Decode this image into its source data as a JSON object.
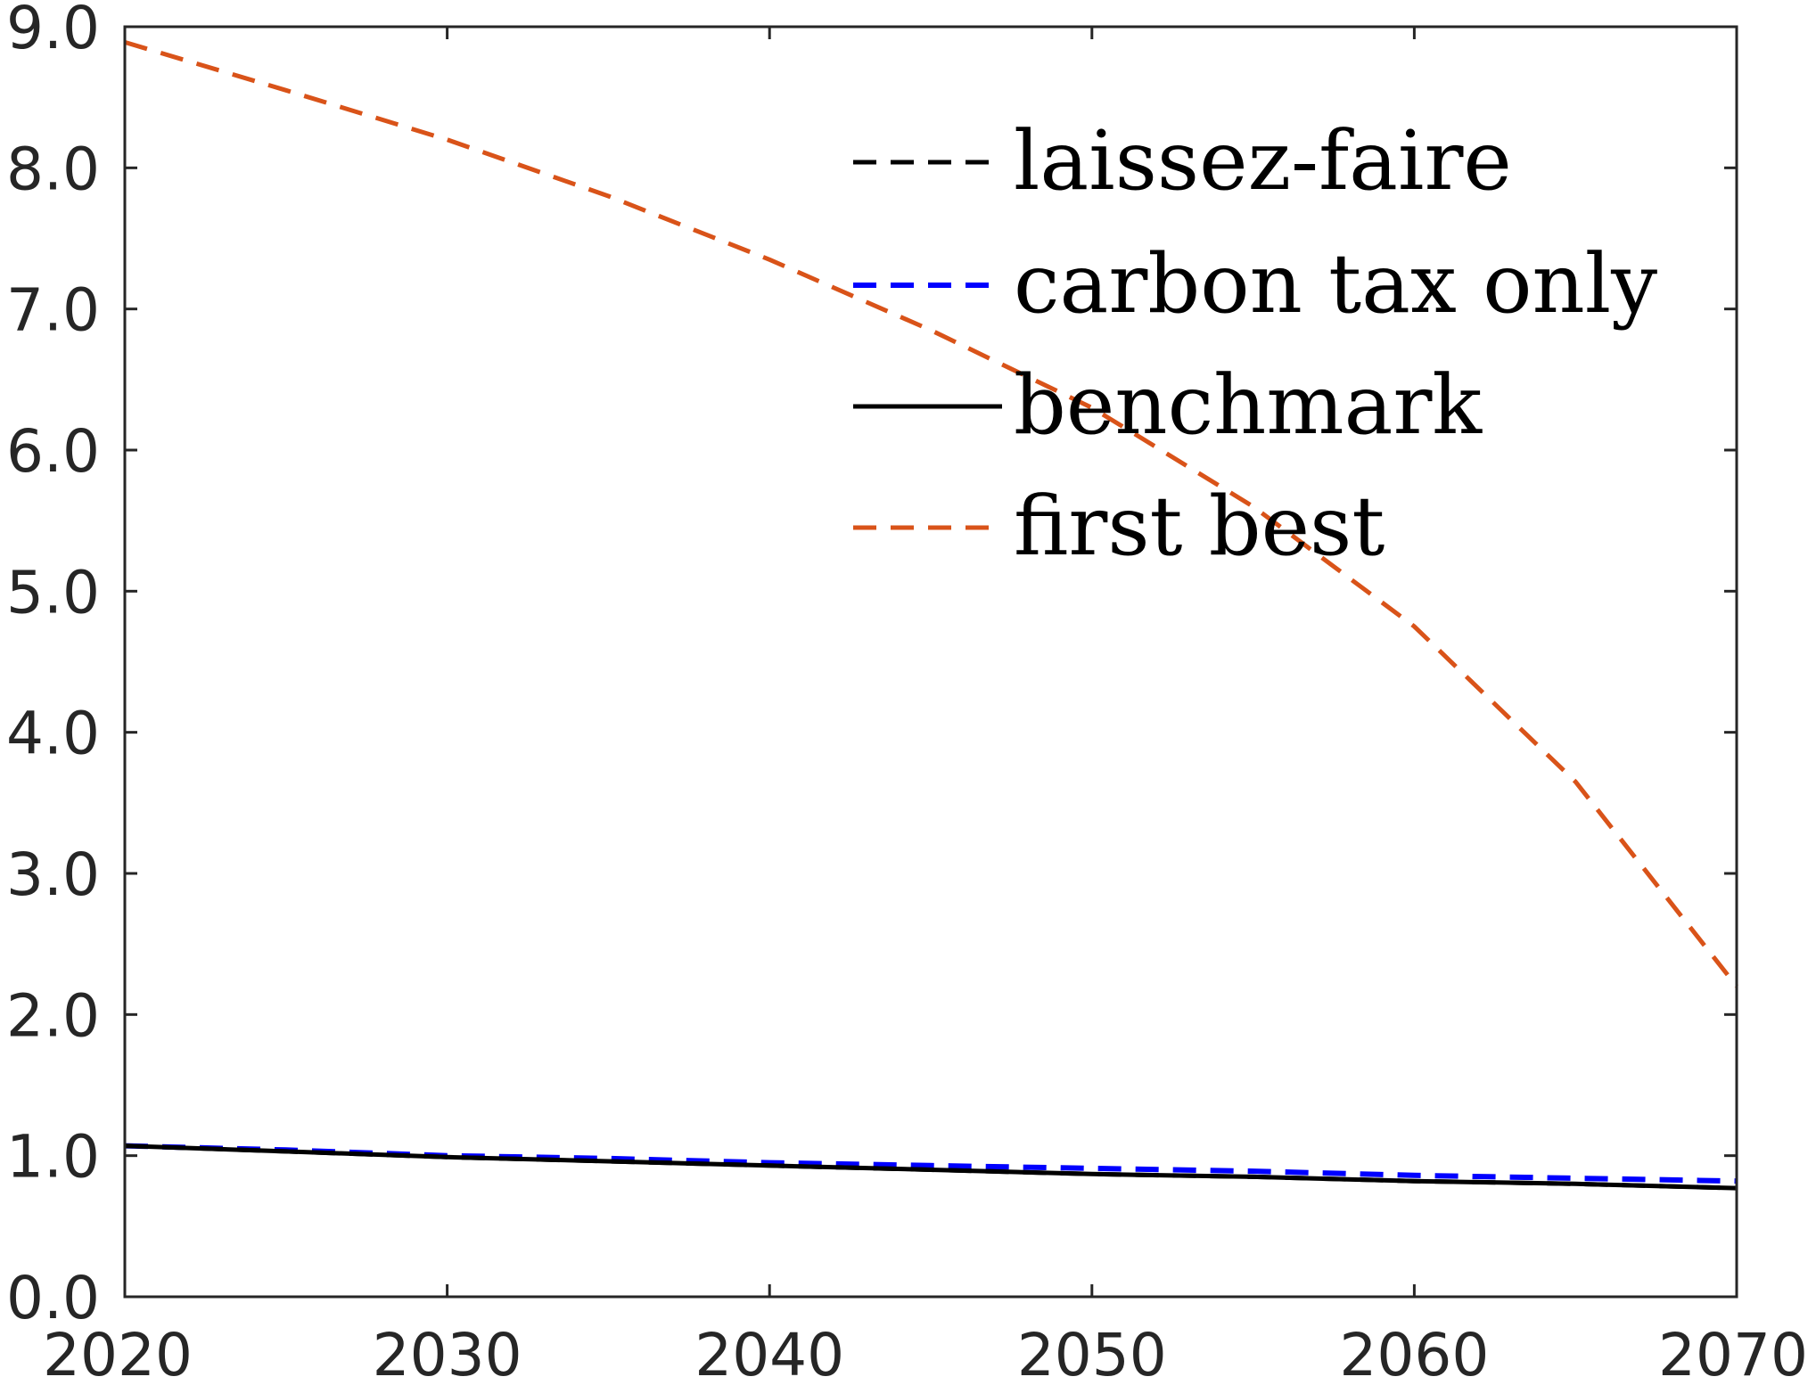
{
  "chart_data": {
    "type": "line",
    "title": "",
    "xlabel": "",
    "ylabel": "",
    "xlim": [
      2020,
      2070
    ],
    "ylim": [
      0,
      9
    ],
    "x_ticks": [
      2020,
      2030,
      2040,
      2050,
      2060,
      2070
    ],
    "y_ticks": [
      0,
      1,
      2,
      3,
      4,
      5,
      6,
      7,
      8,
      9
    ],
    "x_tick_labels": [
      "2020",
      "2030",
      "2040",
      "2050",
      "2060",
      "2070"
    ],
    "y_tick_labels": [
      "0.0",
      "1.0",
      "2.0",
      "3.0",
      "4.0",
      "5.0",
      "6.0",
      "7.0",
      "8.0",
      "9.0"
    ],
    "grid": false,
    "box": true,
    "legend_position": "top-right",
    "x": [
      2020,
      2025,
      2030,
      2035,
      2040,
      2045,
      2050,
      2055,
      2060,
      2065,
      2070
    ],
    "series": [
      {
        "name": "laissez-faire",
        "color": "#000000",
        "style": "dashed",
        "values": [
          1.07,
          1.03,
          0.99,
          0.96,
          0.93,
          0.9,
          0.87,
          0.85,
          0.82,
          0.8,
          0.77
        ]
      },
      {
        "name": "carbon tax only",
        "color": "#0000ff",
        "style": "dashed",
        "values": [
          1.07,
          1.04,
          1.0,
          0.98,
          0.95,
          0.93,
          0.91,
          0.89,
          0.86,
          0.84,
          0.82
        ]
      },
      {
        "name": "benchmark",
        "color": "#000000",
        "style": "solid",
        "values": [
          1.07,
          1.03,
          0.99,
          0.96,
          0.93,
          0.9,
          0.87,
          0.85,
          0.82,
          0.8,
          0.77
        ]
      },
      {
        "name": "first best",
        "color": "#d95319",
        "style": "dashed",
        "values": [
          8.89,
          8.55,
          8.2,
          7.8,
          7.35,
          6.85,
          6.3,
          5.6,
          4.75,
          3.65,
          2.2
        ]
      }
    ]
  }
}
